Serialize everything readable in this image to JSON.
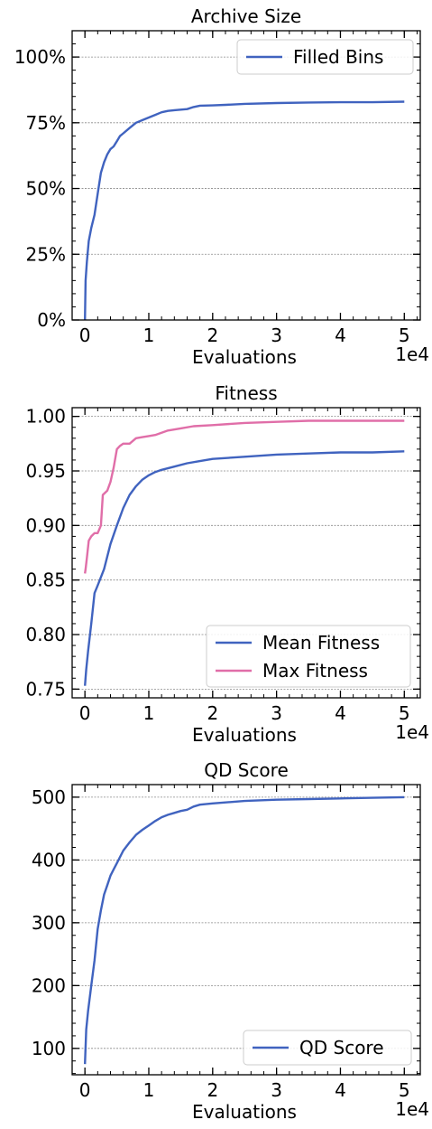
{
  "chart_data": [
    {
      "type": "line",
      "title": "Archive Size",
      "xlabel": "Evaluations",
      "x_offset_label": "1e4",
      "xlim": [
        -0.2,
        5.25
      ],
      "ylim": [
        0,
        110
      ],
      "x_ticks": [
        0,
        1,
        2,
        3,
        4,
        5
      ],
      "x_tick_labels": [
        "0",
        "1",
        "2",
        "3",
        "4",
        "5"
      ],
      "y_ticks": [
        0,
        25,
        50,
        75,
        100
      ],
      "y_tick_labels": [
        "0%",
        "25%",
        "50%",
        "75%",
        "100%"
      ],
      "grid": "y",
      "legend": "top-right",
      "series": [
        {
          "name": "Filled Bins",
          "color": "#4063bf",
          "x": [
            0,
            0.01,
            0.03,
            0.06,
            0.1,
            0.15,
            0.2,
            0.25,
            0.3,
            0.35,
            0.4,
            0.45,
            0.5,
            0.55,
            0.6,
            0.7,
            0.8,
            0.9,
            1.0,
            1.1,
            1.2,
            1.3,
            1.4,
            1.5,
            1.6,
            1.7,
            1.8,
            2.0,
            2.2,
            2.5,
            3.0,
            3.5,
            4.0,
            4.5,
            5.0
          ],
          "y": [
            0,
            15,
            22,
            30,
            35,
            40,
            48,
            56,
            60,
            63,
            65,
            66,
            68,
            70,
            71,
            73,
            75,
            76,
            77,
            78,
            79,
            79.5,
            79.8,
            80,
            80.2,
            81,
            81.5,
            81.6,
            81.8,
            82.2,
            82.5,
            82.7,
            82.8,
            82.8,
            83
          ]
        }
      ]
    },
    {
      "type": "line",
      "title": "Fitness",
      "xlabel": "Evaluations",
      "x_offset_label": "1e4",
      "xlim": [
        -0.2,
        5.25
      ],
      "ylim": [
        0.742,
        1.008
      ],
      "x_ticks": [
        0,
        1,
        2,
        3,
        4,
        5
      ],
      "x_tick_labels": [
        "0",
        "1",
        "2",
        "3",
        "4",
        "5"
      ],
      "y_ticks": [
        0.75,
        0.8,
        0.85,
        0.9,
        0.95,
        1.0
      ],
      "y_tick_labels": [
        "0.75",
        "0.80",
        "0.85",
        "0.90",
        "0.95",
        "1.00"
      ],
      "grid": "y",
      "legend": "bottom-right",
      "series": [
        {
          "name": "Mean Fitness",
          "color": "#4063bf",
          "x": [
            0,
            0.02,
            0.05,
            0.1,
            0.15,
            0.2,
            0.3,
            0.4,
            0.5,
            0.6,
            0.7,
            0.8,
            0.9,
            1.0,
            1.1,
            1.2,
            1.4,
            1.6,
            1.8,
            2.0,
            2.5,
            3.0,
            3.5,
            4.0,
            4.5,
            5.0
          ],
          "y": [
            0.753,
            0.768,
            0.785,
            0.81,
            0.838,
            0.845,
            0.86,
            0.883,
            0.9,
            0.916,
            0.928,
            0.936,
            0.942,
            0.946,
            0.949,
            0.951,
            0.954,
            0.957,
            0.959,
            0.961,
            0.963,
            0.965,
            0.966,
            0.967,
            0.967,
            0.968
          ]
        },
        {
          "name": "Max Fitness",
          "color": "#e06ea8",
          "x": [
            0,
            0.01,
            0.03,
            0.06,
            0.1,
            0.15,
            0.2,
            0.25,
            0.28,
            0.35,
            0.4,
            0.45,
            0.5,
            0.55,
            0.6,
            0.7,
            0.8,
            0.9,
            1.0,
            1.1,
            1.3,
            1.5,
            1.7,
            2.0,
            2.5,
            3.0,
            3.5,
            4.0,
            4.5,
            5.0
          ],
          "y": [
            0.856,
            0.86,
            0.87,
            0.886,
            0.89,
            0.893,
            0.893,
            0.9,
            0.928,
            0.932,
            0.94,
            0.953,
            0.97,
            0.973,
            0.975,
            0.975,
            0.98,
            0.981,
            0.982,
            0.983,
            0.987,
            0.989,
            0.991,
            0.992,
            0.994,
            0.995,
            0.996,
            0.996,
            0.996,
            0.996
          ]
        }
      ]
    },
    {
      "type": "line",
      "title": "QD Score",
      "xlabel": "Evaluations",
      "x_offset_label": "1e4",
      "xlim": [
        -0.2,
        5.25
      ],
      "ylim": [
        58,
        520
      ],
      "x_ticks": [
        0,
        1,
        2,
        3,
        4,
        5
      ],
      "x_tick_labels": [
        "0",
        "1",
        "2",
        "3",
        "4",
        "5"
      ],
      "y_ticks": [
        100,
        200,
        300,
        400,
        500
      ],
      "y_tick_labels": [
        "100",
        "200",
        "300",
        "400",
        "500"
      ],
      "grid": "y",
      "legend": "bottom-right",
      "series": [
        {
          "name": "QD Score",
          "color": "#4063bf",
          "x": [
            0,
            0.02,
            0.05,
            0.1,
            0.15,
            0.2,
            0.25,
            0.3,
            0.35,
            0.4,
            0.45,
            0.5,
            0.6,
            0.7,
            0.8,
            0.9,
            1.0,
            1.1,
            1.2,
            1.3,
            1.4,
            1.5,
            1.6,
            1.7,
            1.8,
            2.0,
            2.5,
            3.0,
            3.5,
            4.0,
            4.5,
            5.0
          ],
          "y": [
            75,
            130,
            160,
            200,
            240,
            290,
            320,
            345,
            360,
            375,
            385,
            395,
            415,
            428,
            440,
            448,
            455,
            462,
            468,
            472,
            475,
            478,
            480,
            485,
            488,
            490,
            494,
            496,
            497,
            498,
            499,
            500
          ]
        }
      ]
    }
  ]
}
